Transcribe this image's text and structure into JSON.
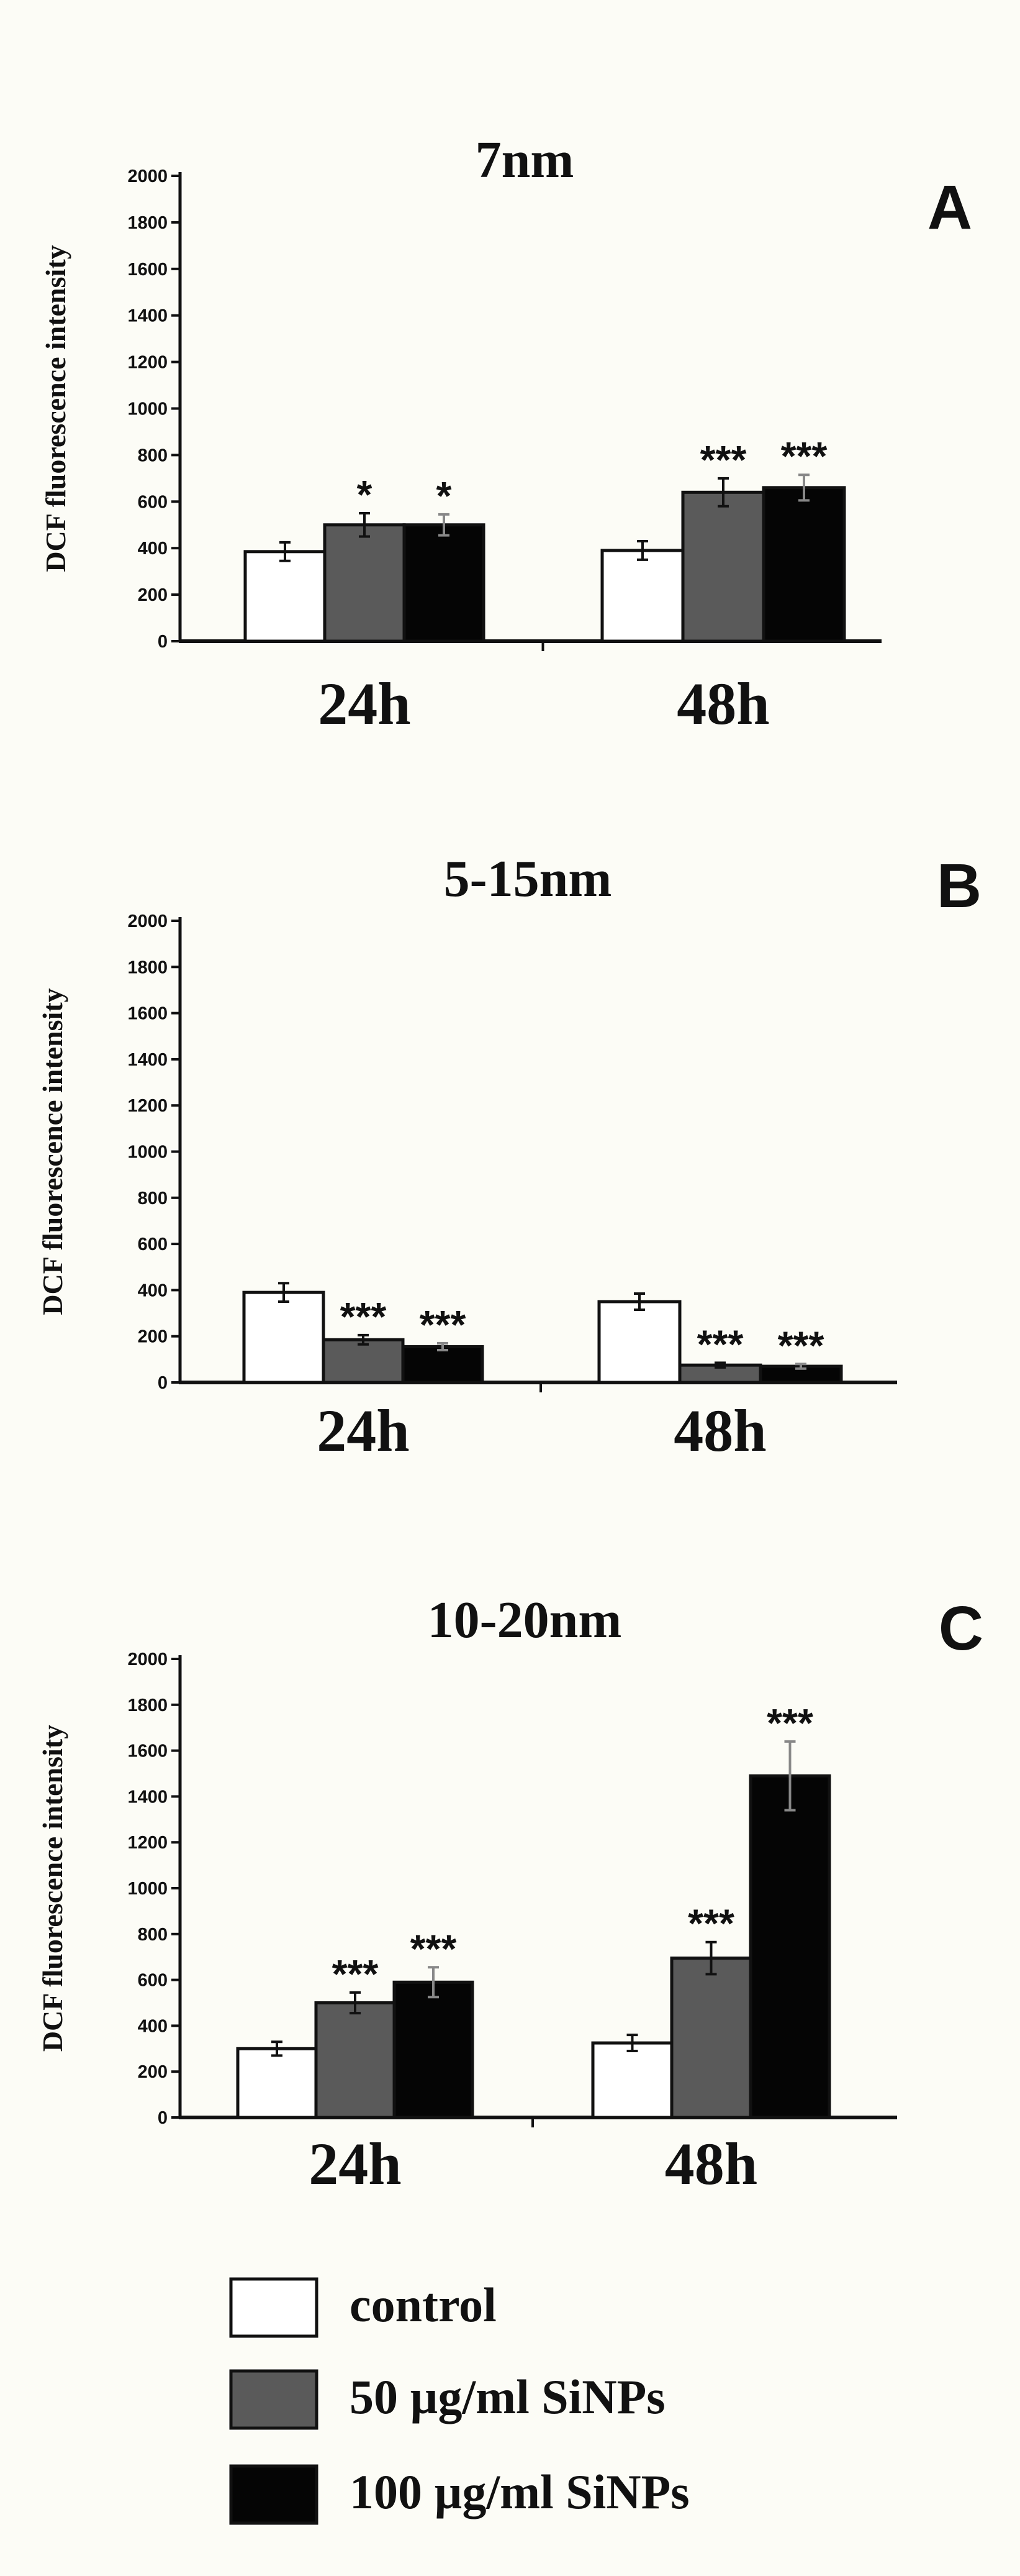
{
  "chart_data": [
    {
      "type": "bar",
      "title": "7nm",
      "panel": "A",
      "ylabel": "DCF fluorescence intensity",
      "ylim": [
        0,
        2000
      ],
      "yticks": [
        0,
        200,
        400,
        600,
        800,
        1000,
        1200,
        1400,
        1600,
        1800,
        2000
      ],
      "categories": [
        "24h",
        "48h"
      ],
      "series": [
        {
          "name": "control",
          "color": "#ffffff",
          "values": [
            385,
            390
          ],
          "errors": [
            40,
            40
          ],
          "significance": [
            "",
            ""
          ]
        },
        {
          "name": "50 µg/ml  SiNPs",
          "color": "#5a5a5a",
          "values": [
            500,
            640
          ],
          "errors": [
            50,
            60
          ],
          "significance": [
            "*",
            "***"
          ]
        },
        {
          "name": "100 µg/ml  SiNPs",
          "color": "#050505",
          "values": [
            500,
            660
          ],
          "errors": [
            45,
            55
          ],
          "significance": [
            "*",
            "***"
          ]
        }
      ]
    },
    {
      "type": "bar",
      "title": "5-15nm",
      "panel": "B",
      "ylabel": "DCF fluorescence intensity",
      "ylim": [
        0,
        2000
      ],
      "yticks": [
        0,
        200,
        400,
        600,
        800,
        1000,
        1200,
        1400,
        1600,
        1800,
        2000
      ],
      "categories": [
        "24h",
        "48h"
      ],
      "series": [
        {
          "name": "control",
          "color": "#ffffff",
          "values": [
            390,
            350
          ],
          "errors": [
            40,
            35
          ],
          "significance": [
            "",
            ""
          ]
        },
        {
          "name": "50 µg/ml  SiNPs",
          "color": "#5a5a5a",
          "values": [
            185,
            75
          ],
          "errors": [
            20,
            10
          ],
          "significance": [
            "***",
            "***"
          ]
        },
        {
          "name": "100 µg/ml  SiNPs",
          "color": "#050505",
          "values": [
            155,
            70
          ],
          "errors": [
            15,
            10
          ],
          "significance": [
            "***",
            "***"
          ]
        }
      ]
    },
    {
      "type": "bar",
      "title": "10-20nm",
      "panel": "C",
      "ylabel": "DCF fluorescence intensity",
      "ylim": [
        0,
        2000
      ],
      "yticks": [
        0,
        200,
        400,
        600,
        800,
        1000,
        1200,
        1400,
        1600,
        1800,
        2000
      ],
      "categories": [
        "24h",
        "48h"
      ],
      "series": [
        {
          "name": "control",
          "color": "#ffffff",
          "values": [
            300,
            325
          ],
          "errors": [
            30,
            35
          ],
          "significance": [
            "",
            ""
          ]
        },
        {
          "name": "50 µg/ml  SiNPs",
          "color": "#5a5a5a",
          "values": [
            500,
            695
          ],
          "errors": [
            45,
            70
          ],
          "significance": [
            "***",
            "***"
          ]
        },
        {
          "name": "100 µg/ml  SiNPs",
          "color": "#050505",
          "values": [
            590,
            1490
          ],
          "errors": [
            65,
            150
          ],
          "significance": [
            "***",
            "***"
          ]
        }
      ]
    }
  ],
  "legend": [
    {
      "label": "control",
      "color": "#ffffff"
    },
    {
      "label": "50 µg/ml  SiNPs",
      "color": "#5a5a5a"
    },
    {
      "label": "100 µg/ml  SiNPs",
      "color": "#050505"
    }
  ]
}
